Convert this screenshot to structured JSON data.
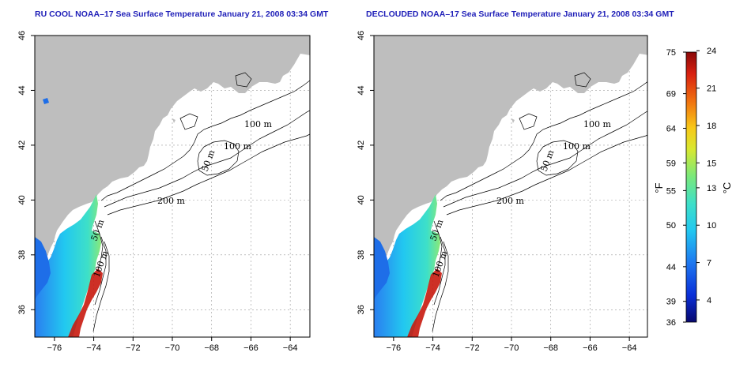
{
  "panels": [
    {
      "id": "ru-cool",
      "title": "RU COOL NOAA–17 Sea Surface Temperature January 21, 2008 03:34 GMT",
      "contour_labels": [
        "100 m",
        "100 m",
        "50 m",
        "200 m",
        "50 m",
        "100 m"
      ]
    },
    {
      "id": "declouded",
      "title": "DECLOUDED NOAA–17 Sea Surface Temperature January 21, 2008 03:34 GMT",
      "contour_labels": [
        "100 m",
        "100 m",
        "50 m",
        "200 m",
        "50 m",
        "100 m"
      ]
    }
  ],
  "axes": {
    "x_ticks": [
      "−76",
      "−74",
      "−72",
      "−70",
      "−68",
      "−66",
      "−64"
    ],
    "y_ticks": [
      "36",
      "38",
      "40",
      "42",
      "44",
      "46"
    ]
  },
  "colorbar": {
    "fahrenheit_label": "°F",
    "celsius_label": "°C",
    "fahrenheit_ticks": [
      "75",
      "69",
      "64",
      "59",
      "55",
      "50",
      "44",
      "39",
      "36"
    ],
    "celsius_ticks": [
      "24",
      "21",
      "18",
      "15",
      "13",
      "10",
      "7",
      "4"
    ],
    "colors": [
      "#08086e",
      "#0a2fd8",
      "#1e78f0",
      "#22c8f0",
      "#3ee0c8",
      "#7ae87a",
      "#d8e830",
      "#f8c818",
      "#f07010",
      "#d82010",
      "#8a0808"
    ]
  },
  "map_colors": {
    "land": "#bebebe",
    "ocean": "#ffffff",
    "grid": "#999999"
  }
}
